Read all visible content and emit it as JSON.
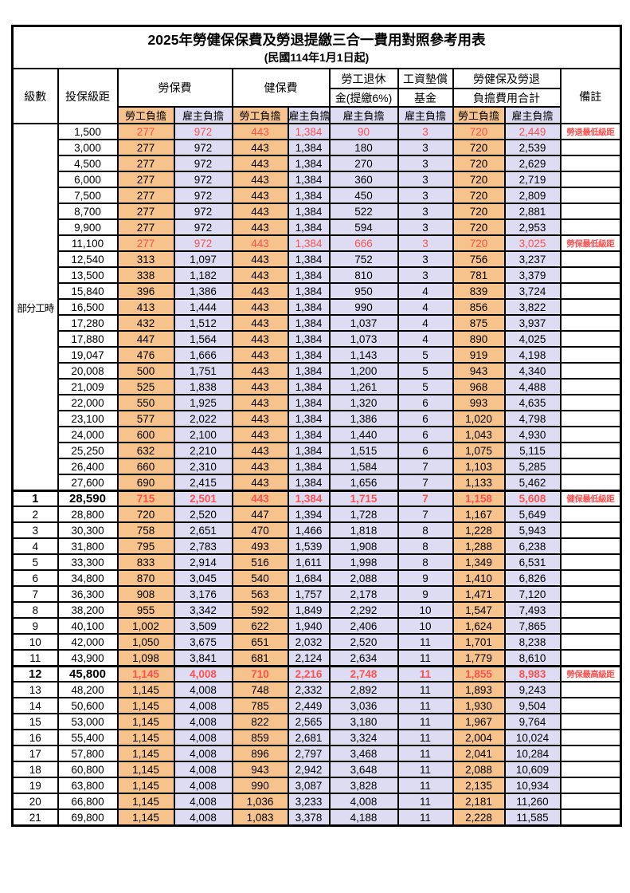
{
  "title": "2025年勞健保保費及勞退提繳三合一費用對照參考用表",
  "subtitle": "(民國114年1月1日起)",
  "colors": {
    "employee_fill": "#f7c38c",
    "employer_fill": "#dedcf2",
    "highlight_red": "#fb5252",
    "border": "#000000"
  },
  "header": {
    "level": "級數",
    "bracket": "投保級距",
    "labor_insurance": "勞保費",
    "health_insurance": "健保費",
    "pension_line1": "勞工退休",
    "pension_line2": "金(提繳6%)",
    "wage_fund_line1": "工資墊償",
    "wage_fund_line2": "基金",
    "total_line1": "勞健保及勞退",
    "total_line2": "負擔費用合計",
    "note": "備註",
    "employee": "勞工負擔",
    "employer": "雇主負擔"
  },
  "part_time_label": "部分工時",
  "part_time_rows": [
    {
      "bracket": "1,500",
      "values": [
        "277",
        "972",
        "443",
        "1,384",
        "90",
        "3",
        "720",
        "2,449"
      ],
      "note": "勞退最低級距",
      "red": true,
      "bold": false
    },
    {
      "bracket": "3,000",
      "values": [
        "277",
        "972",
        "443",
        "1,384",
        "180",
        "3",
        "720",
        "2,539"
      ],
      "note": "",
      "red": false,
      "bold": false
    },
    {
      "bracket": "4,500",
      "values": [
        "277",
        "972",
        "443",
        "1,384",
        "270",
        "3",
        "720",
        "2,629"
      ],
      "note": "",
      "red": false,
      "bold": false
    },
    {
      "bracket": "6,000",
      "values": [
        "277",
        "972",
        "443",
        "1,384",
        "360",
        "3",
        "720",
        "2,719"
      ],
      "note": "",
      "red": false,
      "bold": false
    },
    {
      "bracket": "7,500",
      "values": [
        "277",
        "972",
        "443",
        "1,384",
        "450",
        "3",
        "720",
        "2,809"
      ],
      "note": "",
      "red": false,
      "bold": false
    },
    {
      "bracket": "8,700",
      "values": [
        "277",
        "972",
        "443",
        "1,384",
        "522",
        "3",
        "720",
        "2,881"
      ],
      "note": "",
      "red": false,
      "bold": false
    },
    {
      "bracket": "9,900",
      "values": [
        "277",
        "972",
        "443",
        "1,384",
        "594",
        "3",
        "720",
        "2,953"
      ],
      "note": "",
      "red": false,
      "bold": false
    },
    {
      "bracket": "11,100",
      "values": [
        "277",
        "972",
        "443",
        "1,384",
        "666",
        "3",
        "720",
        "3,025"
      ],
      "note": "勞保最低級距",
      "red": true,
      "bold": false
    },
    {
      "bracket": "12,540",
      "values": [
        "313",
        "1,097",
        "443",
        "1,384",
        "752",
        "3",
        "756",
        "3,237"
      ],
      "note": "",
      "red": false,
      "bold": false
    },
    {
      "bracket": "13,500",
      "values": [
        "338",
        "1,182",
        "443",
        "1,384",
        "810",
        "3",
        "781",
        "3,379"
      ],
      "note": "",
      "red": false,
      "bold": false
    },
    {
      "bracket": "15,840",
      "values": [
        "396",
        "1,386",
        "443",
        "1,384",
        "950",
        "4",
        "839",
        "3,724"
      ],
      "note": "",
      "red": false,
      "bold": false
    },
    {
      "bracket": "16,500",
      "values": [
        "413",
        "1,444",
        "443",
        "1,384",
        "990",
        "4",
        "856",
        "3,822"
      ],
      "note": "",
      "red": false,
      "bold": false
    },
    {
      "bracket": "17,280",
      "values": [
        "432",
        "1,512",
        "443",
        "1,384",
        "1,037",
        "4",
        "875",
        "3,937"
      ],
      "note": "",
      "red": false,
      "bold": false
    },
    {
      "bracket": "17,880",
      "values": [
        "447",
        "1,564",
        "443",
        "1,384",
        "1,073",
        "4",
        "890",
        "4,025"
      ],
      "note": "",
      "red": false,
      "bold": false
    },
    {
      "bracket": "19,047",
      "values": [
        "476",
        "1,666",
        "443",
        "1,384",
        "1,143",
        "5",
        "919",
        "4,198"
      ],
      "note": "",
      "red": false,
      "bold": false
    },
    {
      "bracket": "20,008",
      "values": [
        "500",
        "1,751",
        "443",
        "1,384",
        "1,200",
        "5",
        "943",
        "4,340"
      ],
      "note": "",
      "red": false,
      "bold": false
    },
    {
      "bracket": "21,009",
      "values": [
        "525",
        "1,838",
        "443",
        "1,384",
        "1,261",
        "5",
        "968",
        "4,488"
      ],
      "note": "",
      "red": false,
      "bold": false
    },
    {
      "bracket": "22,000",
      "values": [
        "550",
        "1,925",
        "443",
        "1,384",
        "1,320",
        "6",
        "993",
        "4,635"
      ],
      "note": "",
      "red": false,
      "bold": false
    },
    {
      "bracket": "23,100",
      "values": [
        "577",
        "2,022",
        "443",
        "1,384",
        "1,386",
        "6",
        "1,020",
        "4,798"
      ],
      "note": "",
      "red": false,
      "bold": false
    },
    {
      "bracket": "24,000",
      "values": [
        "600",
        "2,100",
        "443",
        "1,384",
        "1,440",
        "6",
        "1,043",
        "4,930"
      ],
      "note": "",
      "red": false,
      "bold": false
    },
    {
      "bracket": "25,250",
      "values": [
        "632",
        "2,210",
        "443",
        "1,384",
        "1,515",
        "6",
        "1,075",
        "5,115"
      ],
      "note": "",
      "red": false,
      "bold": false
    },
    {
      "bracket": "26,400",
      "values": [
        "660",
        "2,310",
        "443",
        "1,384",
        "1,584",
        "7",
        "1,103",
        "5,285"
      ],
      "note": "",
      "red": false,
      "bold": false
    },
    {
      "bracket": "27,600",
      "values": [
        "690",
        "2,415",
        "443",
        "1,384",
        "1,656",
        "7",
        "1,133",
        "5,462"
      ],
      "note": "",
      "red": false,
      "bold": false
    }
  ],
  "graded_rows": [
    {
      "level": "1",
      "bracket": "28,590",
      "values": [
        "715",
        "2,501",
        "443",
        "1,384",
        "1,715",
        "7",
        "1,158",
        "5,608"
      ],
      "note": "健保最低級距",
      "red": true,
      "bold": true
    },
    {
      "level": "2",
      "bracket": "28,800",
      "values": [
        "720",
        "2,520",
        "447",
        "1,394",
        "1,728",
        "7",
        "1,167",
        "5,649"
      ],
      "note": "",
      "red": false,
      "bold": false
    },
    {
      "level": "3",
      "bracket": "30,300",
      "values": [
        "758",
        "2,651",
        "470",
        "1,466",
        "1,818",
        "8",
        "1,228",
        "5,943"
      ],
      "note": "",
      "red": false,
      "bold": false
    },
    {
      "level": "4",
      "bracket": "31,800",
      "values": [
        "795",
        "2,783",
        "493",
        "1,539",
        "1,908",
        "8",
        "1,288",
        "6,238"
      ],
      "note": "",
      "red": false,
      "bold": false
    },
    {
      "level": "5",
      "bracket": "33,300",
      "values": [
        "833",
        "2,914",
        "516",
        "1,611",
        "1,998",
        "8",
        "1,349",
        "6,531"
      ],
      "note": "",
      "red": false,
      "bold": false
    },
    {
      "level": "6",
      "bracket": "34,800",
      "values": [
        "870",
        "3,045",
        "540",
        "1,684",
        "2,088",
        "9",
        "1,410",
        "6,826"
      ],
      "note": "",
      "red": false,
      "bold": false
    },
    {
      "level": "7",
      "bracket": "36,300",
      "values": [
        "908",
        "3,176",
        "563",
        "1,757",
        "2,178",
        "9",
        "1,471",
        "7,120"
      ],
      "note": "",
      "red": false,
      "bold": false
    },
    {
      "level": "8",
      "bracket": "38,200",
      "values": [
        "955",
        "3,342",
        "592",
        "1,849",
        "2,292",
        "10",
        "1,547",
        "7,493"
      ],
      "note": "",
      "red": false,
      "bold": false
    },
    {
      "level": "9",
      "bracket": "40,100",
      "values": [
        "1,002",
        "3,509",
        "622",
        "1,940",
        "2,406",
        "10",
        "1,624",
        "7,865"
      ],
      "note": "",
      "red": false,
      "bold": false
    },
    {
      "level": "10",
      "bracket": "42,000",
      "values": [
        "1,050",
        "3,675",
        "651",
        "2,032",
        "2,520",
        "11",
        "1,701",
        "8,238"
      ],
      "note": "",
      "red": false,
      "bold": false
    },
    {
      "level": "11",
      "bracket": "43,900",
      "values": [
        "1,098",
        "3,841",
        "681",
        "2,124",
        "2,634",
        "11",
        "1,779",
        "8,610"
      ],
      "note": "",
      "red": false,
      "bold": false
    },
    {
      "level": "12",
      "bracket": "45,800",
      "values": [
        "1,145",
        "4,008",
        "710",
        "2,216",
        "2,748",
        "11",
        "1,855",
        "8,983"
      ],
      "note": "勞保最高級距",
      "red": true,
      "bold": true
    },
    {
      "level": "13",
      "bracket": "48,200",
      "values": [
        "1,145",
        "4,008",
        "748",
        "2,332",
        "2,892",
        "11",
        "1,893",
        "9,243"
      ],
      "note": "",
      "red": false,
      "bold": false
    },
    {
      "level": "14",
      "bracket": "50,600",
      "values": [
        "1,145",
        "4,008",
        "785",
        "2,449",
        "3,036",
        "11",
        "1,930",
        "9,504"
      ],
      "note": "",
      "red": false,
      "bold": false
    },
    {
      "level": "15",
      "bracket": "53,000",
      "values": [
        "1,145",
        "4,008",
        "822",
        "2,565",
        "3,180",
        "11",
        "1,967",
        "9,764"
      ],
      "note": "",
      "red": false,
      "bold": false
    },
    {
      "level": "16",
      "bracket": "55,400",
      "values": [
        "1,145",
        "4,008",
        "859",
        "2,681",
        "3,324",
        "11",
        "2,004",
        "10,024"
      ],
      "note": "",
      "red": false,
      "bold": false
    },
    {
      "level": "17",
      "bracket": "57,800",
      "values": [
        "1,145",
        "4,008",
        "896",
        "2,797",
        "3,468",
        "11",
        "2,041",
        "10,284"
      ],
      "note": "",
      "red": false,
      "bold": false
    },
    {
      "level": "18",
      "bracket": "60,800",
      "values": [
        "1,145",
        "4,008",
        "943",
        "2,942",
        "3,648",
        "11",
        "2,088",
        "10,609"
      ],
      "note": "",
      "red": false,
      "bold": false
    },
    {
      "level": "19",
      "bracket": "63,800",
      "values": [
        "1,145",
        "4,008",
        "990",
        "3,087",
        "3,828",
        "11",
        "2,135",
        "10,934"
      ],
      "note": "",
      "red": false,
      "bold": false
    },
    {
      "level": "20",
      "bracket": "66,800",
      "values": [
        "1,145",
        "4,008",
        "1,036",
        "3,233",
        "4,008",
        "11",
        "2,181",
        "11,260"
      ],
      "note": "",
      "red": false,
      "bold": false
    },
    {
      "level": "21",
      "bracket": "69,800",
      "values": [
        "1,145",
        "4,008",
        "1,083",
        "3,378",
        "4,188",
        "11",
        "2,228",
        "11,585"
      ],
      "note": "",
      "red": false,
      "bold": false
    }
  ],
  "column_fill_pattern": [
    "emp",
    "er",
    "emp",
    "er",
    "er",
    "er",
    "emp",
    "er"
  ]
}
